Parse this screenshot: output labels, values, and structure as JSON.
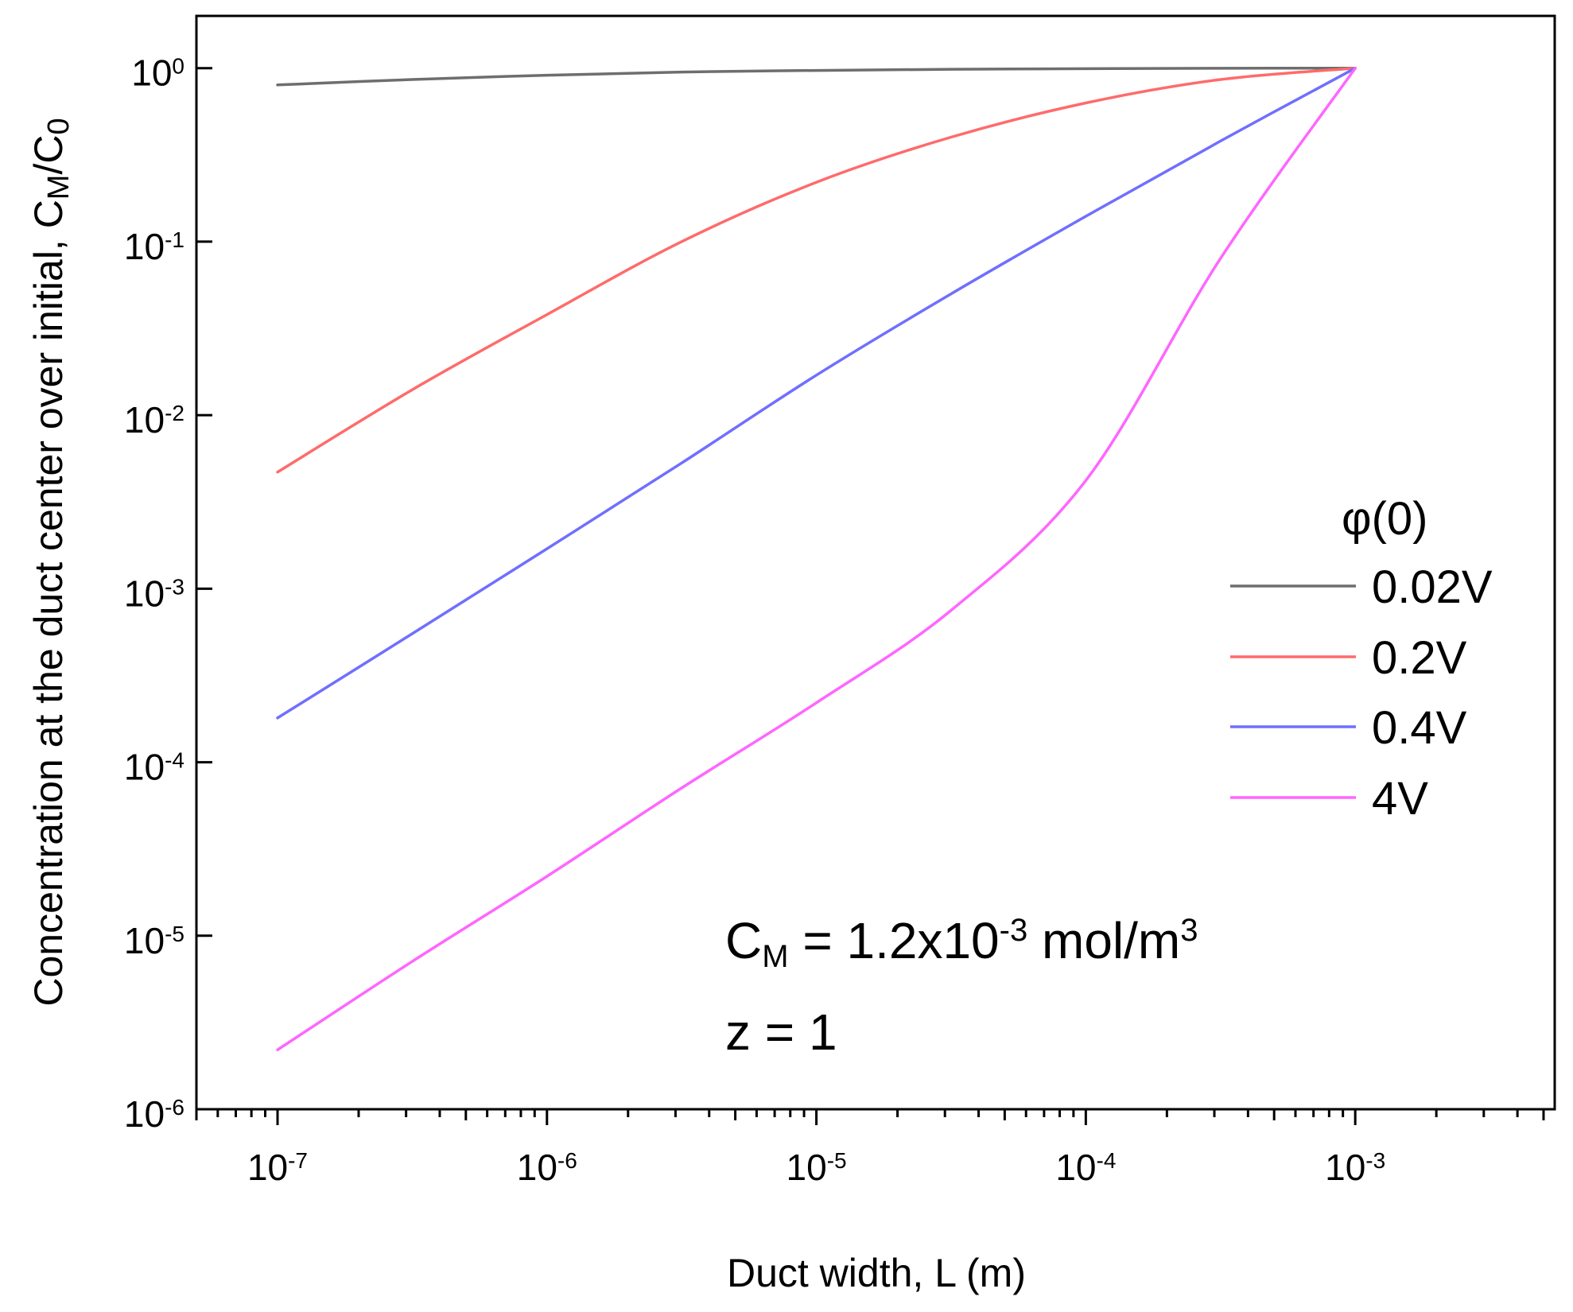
{
  "chart_data": {
    "type": "line",
    "title": "",
    "xscale": "log",
    "yscale": "log",
    "xlim": [
      5e-08,
      0.0055
    ],
    "ylim": [
      1e-06,
      2
    ],
    "xlabel": "Duct width,  L (m)",
    "ylabel": {
      "text": "Concentration at the duct center over initial, C",
      "sub1": "M",
      "slash": "/C",
      "sub2": "0"
    },
    "x_ticks": [
      {
        "value": 1e-07,
        "base": "10",
        "exp": "-7"
      },
      {
        "value": 1e-06,
        "base": "10",
        "exp": "-6"
      },
      {
        "value": 1e-05,
        "base": "10",
        "exp": "-5"
      },
      {
        "value": 0.0001,
        "base": "10",
        "exp": "-4"
      },
      {
        "value": 0.001,
        "base": "10",
        "exp": "-3"
      }
    ],
    "y_ticks": [
      {
        "value": 1,
        "base": "10",
        "exp": "0"
      },
      {
        "value": 0.1,
        "base": "10",
        "exp": "-1"
      },
      {
        "value": 0.01,
        "base": "10",
        "exp": "-2"
      },
      {
        "value": 0.001,
        "base": "10",
        "exp": "-3"
      },
      {
        "value": 0.0001,
        "base": "10",
        "exp": "-4"
      },
      {
        "value": 1e-05,
        "base": "10",
        "exp": "-5"
      },
      {
        "value": 1e-06,
        "base": "10",
        "exp": "-6"
      }
    ],
    "x": [
      1e-07,
      3.16e-07,
      1e-06,
      3.16e-06,
      1e-05,
      3.16e-05,
      0.0001,
      0.000316,
      0.001
    ],
    "series": [
      {
        "name": "0.02V",
        "color": "#6e6e6e",
        "values": [
          0.8,
          0.86,
          0.91,
          0.95,
          0.97,
          0.985,
          0.993,
          0.998,
          1.0
        ]
      },
      {
        "name": "0.2V",
        "color": "#ff6b6b",
        "values": [
          0.0047,
          0.014,
          0.038,
          0.1,
          0.22,
          0.4,
          0.63,
          0.86,
          1.0
        ]
      },
      {
        "name": "0.4V",
        "color": "#6f6fff",
        "values": [
          0.00018,
          0.00055,
          0.0017,
          0.0053,
          0.017,
          0.05,
          0.14,
          0.38,
          1.0
        ]
      },
      {
        "name": "4V",
        "color": "#ff66ff",
        "values": [
          2.2e-06,
          7.1e-06,
          2.2e-05,
          7.1e-05,
          0.00022,
          0.00075,
          0.0042,
          0.08,
          1.0
        ]
      }
    ],
    "legend": {
      "title": "φ(0)",
      "location": "right",
      "entries": [
        "0.02V",
        "0.2V",
        "0.4V",
        "4V"
      ]
    },
    "annotations": {
      "conc": {
        "c": "C",
        "sub": "M",
        "eq": " = 1.2x10",
        "exp": "-3",
        "unit": " mol/m",
        "unit_exp": "3"
      },
      "z": "z = 1"
    }
  }
}
